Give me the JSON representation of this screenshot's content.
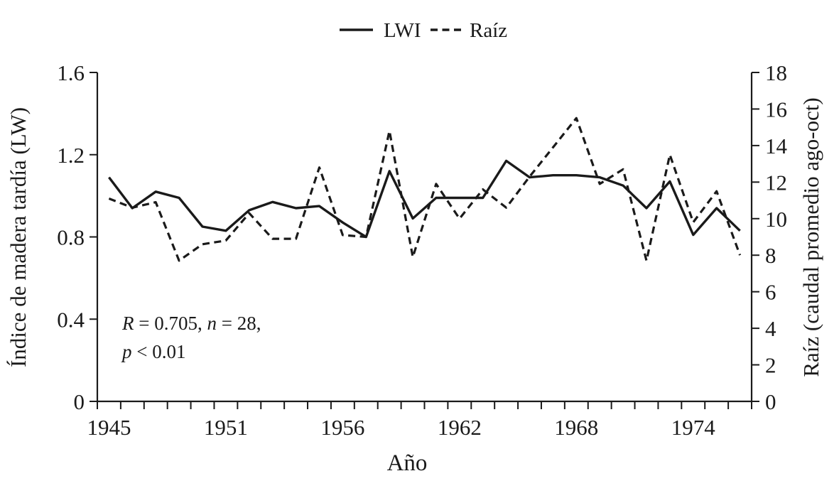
{
  "figure": {
    "background": "#ffffff",
    "ink": "#1a1a1a"
  },
  "legend": {
    "items": [
      {
        "name": "LWI",
        "style": "solid"
      },
      {
        "name": "Raíz",
        "style": "dashed"
      }
    ]
  },
  "stats": {
    "r": "R",
    "eq_r": " = 0.705, ",
    "n": "n",
    "eq_n": " = 28,",
    "p": "p",
    "eq_p": " < 0.01"
  },
  "chart_data": {
    "type": "line",
    "title": "",
    "annotation": "R = 0.705, n = 28, p < 0.01",
    "legend_position": "top-center",
    "grid": false,
    "x_axis": {
      "label": "Año",
      "n_bins": 28,
      "tick_labels": [
        "1945",
        "1951",
        "1956",
        "1962",
        "1968",
        "1974"
      ],
      "tick_bin_positions": [
        0,
        5,
        10,
        15,
        20,
        25
      ]
    },
    "y_left": {
      "label": "Índice de madera tardía (LW)",
      "ticks": [
        0,
        0.4,
        0.8,
        1.2,
        1.6
      ],
      "range": [
        0,
        1.6
      ]
    },
    "y_right": {
      "label": "Raíz (caudal promedio ago-oct)",
      "ticks": [
        0,
        2,
        4,
        6,
        8,
        10,
        12,
        14,
        16,
        18
      ],
      "range": [
        0,
        18
      ]
    },
    "series": [
      {
        "name": "LWI",
        "axis": "left",
        "style": "solid",
        "values": [
          1.09,
          0.94,
          1.02,
          0.99,
          0.85,
          0.83,
          0.93,
          0.97,
          0.94,
          0.95,
          0.87,
          0.8,
          1.12,
          0.89,
          0.99,
          0.99,
          0.99,
          1.17,
          1.09,
          1.1,
          1.1,
          1.09,
          1.05,
          0.94,
          1.07,
          0.81,
          0.94,
          0.83
        ]
      },
      {
        "name": "Raíz",
        "axis": "right",
        "style": "dashed",
        "values": [
          11.1,
          10.6,
          10.9,
          7.7,
          8.6,
          8.8,
          10.3,
          8.9,
          8.9,
          12.8,
          9.1,
          9.0,
          14.8,
          7.9,
          11.9,
          10.0,
          11.6,
          10.6,
          12.3,
          13.9,
          15.5,
          11.9,
          12.7,
          7.7,
          13.5,
          9.8,
          11.5,
          8.0
        ]
      }
    ]
  }
}
